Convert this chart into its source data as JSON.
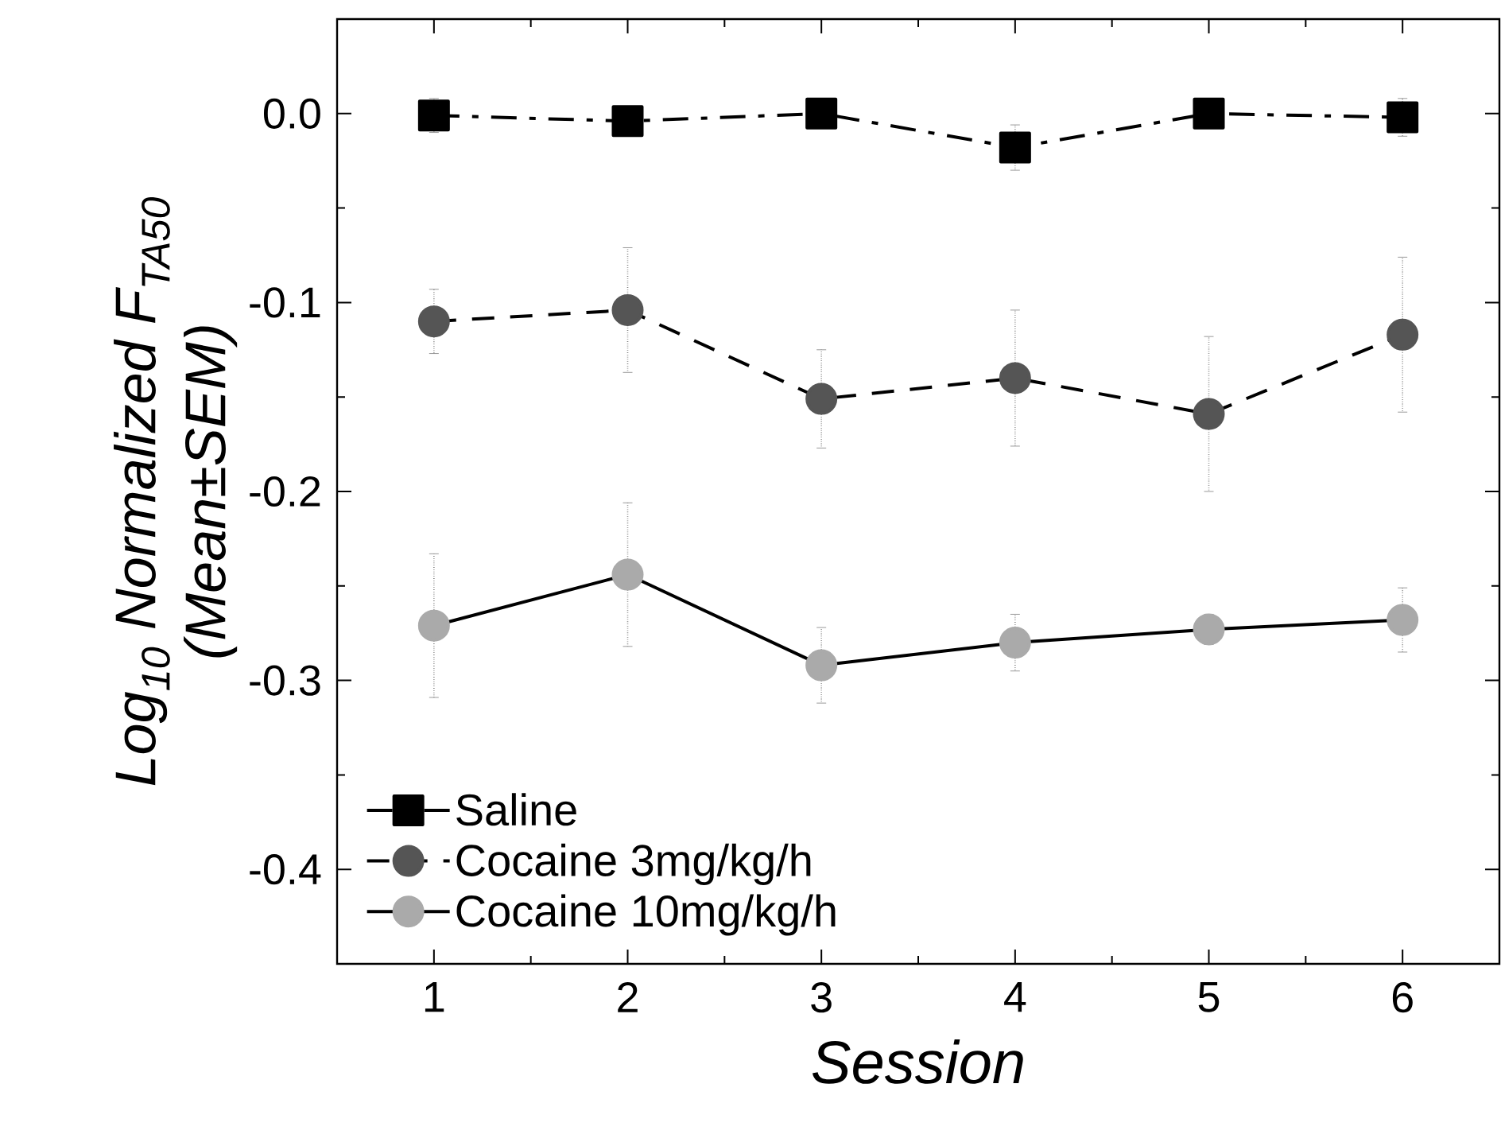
{
  "chart_data": {
    "type": "line",
    "xlabel": "Session",
    "ylabel": "Log$_{10}$ Normalized F$_{TA50}$ (Mean±SEM)",
    "x": [
      1,
      2,
      3,
      4,
      5,
      6
    ],
    "xlim": [
      0.5,
      6.5
    ],
    "xticks": [
      1,
      2,
      3,
      4,
      5,
      6
    ],
    "ylim": [
      -0.45,
      0.05
    ],
    "yticks": [
      {
        "value": 0,
        "label": "0.0"
      },
      -0.1,
      -0.2,
      -0.3,
      -0.4
    ],
    "grid": false,
    "legend": "bottom left",
    "series": [
      {
        "name": "Saline",
        "color": "#000000",
        "marker": "square",
        "line_style": "dashdot",
        "values": [
          -0.001,
          -0.004,
          0,
          -0.018,
          0,
          -0.002
        ],
        "errors": [
          0.009,
          null,
          null,
          0.012,
          null,
          0.01
        ]
      },
      {
        "name": "Cocaine 3mg/kg/h",
        "color": "#555555",
        "marker": "circle",
        "line_style": "dashed",
        "values": [
          -0.11,
          -0.104,
          -0.151,
          -0.14,
          -0.159,
          -0.117
        ],
        "errors": [
          0.017,
          0.033,
          0.026,
          0.036,
          0.041,
          0.041
        ]
      },
      {
        "name": "Cocaine 10mg/kg/h",
        "color": "#aaaaaa",
        "marker": "circle",
        "line_style": "solid",
        "values": [
          -0.271,
          -0.244,
          -0.292,
          -0.28,
          -0.273,
          -0.268
        ],
        "errors": [
          0.038,
          0.038,
          0.02,
          0.015,
          0.008,
          0.017
        ]
      }
    ]
  }
}
